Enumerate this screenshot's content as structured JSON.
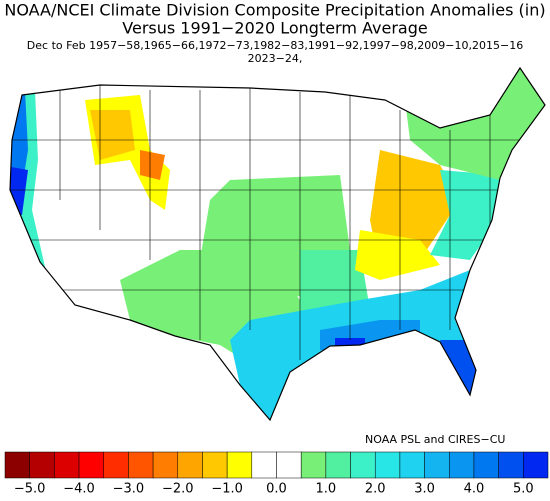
{
  "header": {
    "title": "NOAA/NCEI Climate Division Composite Precipitation Anomalies (in)",
    "subtitle": "Versus 1991−2020 Longterm Average",
    "period": "Dec to Feb  1957−58,1965−66,1972−73,1982−83,1991−92,1997−98,2009−10,2015−16",
    "period_cont": "2023−24,"
  },
  "credit": "NOAA PSL and CIRES−CU",
  "colorbar": {
    "bins": [
      -5.5,
      -5,
      -4.5,
      -4,
      -3.5,
      -3,
      -2.5,
      -2,
      -1.5,
      -1,
      -0.5,
      0,
      0.5,
      1,
      1.5,
      2,
      2.5,
      3,
      3.5,
      4,
      4.5,
      5,
      5.5
    ],
    "colors": [
      "#8c0000",
      "#b40000",
      "#dc0000",
      "#ff0000",
      "#ff2d00",
      "#ff5500",
      "#ff7d00",
      "#ffa500",
      "#ffc800",
      "#ffff00",
      "#ffffff",
      "#ffffff",
      "#78f078",
      "#50f0a0",
      "#3cf0c8",
      "#28e6e6",
      "#1ed2f0",
      "#14b4f0",
      "#0a96f0",
      "#0078f0",
      "#0050f0",
      "#0028f0"
    ],
    "ticks": [
      {
        "value": -5,
        "label": "−5.0"
      },
      {
        "value": -4,
        "label": "−4.0"
      },
      {
        "value": -3,
        "label": "−3.0"
      },
      {
        "value": -2,
        "label": "−2.0"
      },
      {
        "value": -1,
        "label": "−1.0"
      },
      {
        "value": 0,
        "label": "0.0"
      },
      {
        "value": 1,
        "label": "1.0"
      },
      {
        "value": 2,
        "label": "2.0"
      },
      {
        "value": 3,
        "label": "3.0"
      },
      {
        "value": 4,
        "label": "4.0"
      },
      {
        "value": 5,
        "label": "5.0"
      }
    ]
  }
}
